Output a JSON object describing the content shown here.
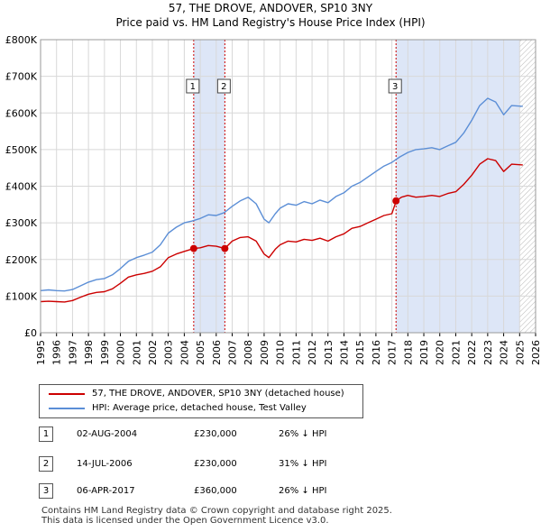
{
  "title_line1": "57, THE DROVE, ANDOVER, SP10 3NY",
  "title_line2": "Price paid vs. HM Land Registry's House Price Index (HPI)",
  "chart_data": {
    "type": "line",
    "title": "57, THE DROVE, ANDOVER, SP10 3NY — Price paid vs. HM Land Registry's House Price Index (HPI)",
    "xlabel": "",
    "ylabel": "",
    "xlim": [
      1995,
      2026
    ],
    "ylim": [
      0,
      800000
    ],
    "x_ticks": [
      "1995",
      "1996",
      "1997",
      "1998",
      "1999",
      "2000",
      "2001",
      "2002",
      "2003",
      "2004",
      "2005",
      "2006",
      "2007",
      "2008",
      "2009",
      "2010",
      "2011",
      "2012",
      "2013",
      "2014",
      "2015",
      "2016",
      "2017",
      "2018",
      "2019",
      "2020",
      "2021",
      "2022",
      "2023",
      "2024",
      "2025",
      "2026"
    ],
    "y_ticks": [
      {
        "value": 0,
        "label": "£0"
      },
      {
        "value": 100000,
        "label": "£100K"
      },
      {
        "value": 200000,
        "label": "£200K"
      },
      {
        "value": 300000,
        "label": "£300K"
      },
      {
        "value": 400000,
        "label": "£400K"
      },
      {
        "value": 500000,
        "label": "£500K"
      },
      {
        "value": 600000,
        "label": "£600K"
      },
      {
        "value": 700000,
        "label": "£700K"
      },
      {
        "value": 800000,
        "label": "£800K"
      }
    ],
    "series": [
      {
        "name": "57, THE DROVE, ANDOVER, SP10 3NY (detached house)",
        "color": "#cc0000",
        "points": [
          [
            1995.0,
            85000
          ],
          [
            1995.5,
            86000
          ],
          [
            1996.0,
            85000
          ],
          [
            1996.5,
            84000
          ],
          [
            1997.0,
            88000
          ],
          [
            1997.5,
            97000
          ],
          [
            1998.0,
            105000
          ],
          [
            1998.5,
            110000
          ],
          [
            1999.0,
            112000
          ],
          [
            1999.5,
            120000
          ],
          [
            2000.0,
            135000
          ],
          [
            2000.5,
            152000
          ],
          [
            2001.0,
            158000
          ],
          [
            2001.5,
            162000
          ],
          [
            2002.0,
            168000
          ],
          [
            2002.5,
            180000
          ],
          [
            2003.0,
            205000
          ],
          [
            2003.5,
            215000
          ],
          [
            2004.0,
            222000
          ],
          [
            2004.6,
            230000
          ],
          [
            2005.0,
            232000
          ],
          [
            2005.5,
            238000
          ],
          [
            2006.0,
            236000
          ],
          [
            2006.54,
            230000
          ],
          [
            2007.0,
            250000
          ],
          [
            2007.5,
            260000
          ],
          [
            2008.0,
            262000
          ],
          [
            2008.5,
            250000
          ],
          [
            2009.0,
            215000
          ],
          [
            2009.3,
            205000
          ],
          [
            2009.7,
            228000
          ],
          [
            2010.0,
            240000
          ],
          [
            2010.5,
            250000
          ],
          [
            2011.0,
            248000
          ],
          [
            2011.5,
            255000
          ],
          [
            2012.0,
            252000
          ],
          [
            2012.5,
            258000
          ],
          [
            2013.0,
            250000
          ],
          [
            2013.5,
            262000
          ],
          [
            2014.0,
            270000
          ],
          [
            2014.5,
            285000
          ],
          [
            2015.0,
            290000
          ],
          [
            2015.5,
            300000
          ],
          [
            2016.0,
            310000
          ],
          [
            2016.5,
            320000
          ],
          [
            2017.0,
            325000
          ],
          [
            2017.27,
            360000
          ],
          [
            2017.6,
            370000
          ],
          [
            2018.0,
            375000
          ],
          [
            2018.5,
            370000
          ],
          [
            2019.0,
            372000
          ],
          [
            2019.5,
            375000
          ],
          [
            2020.0,
            372000
          ],
          [
            2020.5,
            380000
          ],
          [
            2021.0,
            385000
          ],
          [
            2021.5,
            405000
          ],
          [
            2022.0,
            430000
          ],
          [
            2022.5,
            460000
          ],
          [
            2023.0,
            475000
          ],
          [
            2023.5,
            470000
          ],
          [
            2024.0,
            440000
          ],
          [
            2024.5,
            460000
          ],
          [
            2025.2,
            458000
          ]
        ]
      },
      {
        "name": "HPI: Average price, detached house, Test Valley",
        "color": "#5b8ed6",
        "points": [
          [
            1995.0,
            115000
          ],
          [
            1995.5,
            117000
          ],
          [
            1996.0,
            115000
          ],
          [
            1996.5,
            114000
          ],
          [
            1997.0,
            118000
          ],
          [
            1997.5,
            128000
          ],
          [
            1998.0,
            138000
          ],
          [
            1998.5,
            145000
          ],
          [
            1999.0,
            148000
          ],
          [
            1999.5,
            158000
          ],
          [
            2000.0,
            175000
          ],
          [
            2000.5,
            195000
          ],
          [
            2001.0,
            205000
          ],
          [
            2001.5,
            212000
          ],
          [
            2002.0,
            220000
          ],
          [
            2002.5,
            240000
          ],
          [
            2003.0,
            272000
          ],
          [
            2003.5,
            288000
          ],
          [
            2004.0,
            300000
          ],
          [
            2004.5,
            305000
          ],
          [
            2005.0,
            312000
          ],
          [
            2005.5,
            322000
          ],
          [
            2006.0,
            320000
          ],
          [
            2006.5,
            328000
          ],
          [
            2007.0,
            345000
          ],
          [
            2007.5,
            360000
          ],
          [
            2008.0,
            370000
          ],
          [
            2008.5,
            352000
          ],
          [
            2009.0,
            310000
          ],
          [
            2009.3,
            300000
          ],
          [
            2009.7,
            325000
          ],
          [
            2010.0,
            340000
          ],
          [
            2010.5,
            352000
          ],
          [
            2011.0,
            348000
          ],
          [
            2011.5,
            358000
          ],
          [
            2012.0,
            352000
          ],
          [
            2012.5,
            362000
          ],
          [
            2013.0,
            355000
          ],
          [
            2013.5,
            372000
          ],
          [
            2014.0,
            382000
          ],
          [
            2014.5,
            400000
          ],
          [
            2015.0,
            410000
          ],
          [
            2015.5,
            425000
          ],
          [
            2016.0,
            440000
          ],
          [
            2016.5,
            455000
          ],
          [
            2017.0,
            465000
          ],
          [
            2017.5,
            480000
          ],
          [
            2018.0,
            492000
          ],
          [
            2018.5,
            500000
          ],
          [
            2019.0,
            502000
          ],
          [
            2019.5,
            505000
          ],
          [
            2020.0,
            500000
          ],
          [
            2020.5,
            510000
          ],
          [
            2021.0,
            520000
          ],
          [
            2021.5,
            545000
          ],
          [
            2022.0,
            580000
          ],
          [
            2022.5,
            620000
          ],
          [
            2023.0,
            640000
          ],
          [
            2023.5,
            630000
          ],
          [
            2024.0,
            595000
          ],
          [
            2024.5,
            620000
          ],
          [
            2025.2,
            618000
          ]
        ]
      }
    ],
    "sales": [
      {
        "label": "1",
        "x": 2004.59,
        "price": 230000
      },
      {
        "label": "2",
        "x": 2006.54,
        "price": 230000
      },
      {
        "label": "3",
        "x": 2017.26,
        "price": 360000
      }
    ],
    "shaded_ranges": [
      [
        2004.59,
        2006.54
      ],
      [
        2017.26,
        2025.0
      ]
    ],
    "hatched_from": 2025.0,
    "colors": {
      "price": "#cc0000",
      "hpi": "#5b8ed6",
      "shade": "#dde6f7",
      "grid": "#d8d8d8",
      "vline": "#cc0000"
    }
  },
  "legend": {
    "price_label": "57, THE DROVE, ANDOVER, SP10 3NY (detached house)",
    "hpi_label": "HPI: Average price, detached house, Test Valley"
  },
  "transactions": [
    {
      "num": "1",
      "date": "02-AUG-2004",
      "price": "£230,000",
      "hpi": "26% ↓ HPI"
    },
    {
      "num": "2",
      "date": "14-JUL-2006",
      "price": "£230,000",
      "hpi": "31% ↓ HPI"
    },
    {
      "num": "3",
      "date": "06-APR-2017",
      "price": "£360,000",
      "hpi": "26% ↓ HPI"
    }
  ],
  "footer": {
    "line1": "Contains HM Land Registry data © Crown copyright and database right 2025.",
    "line2": "This data is licensed under the Open Government Licence v3.0."
  }
}
